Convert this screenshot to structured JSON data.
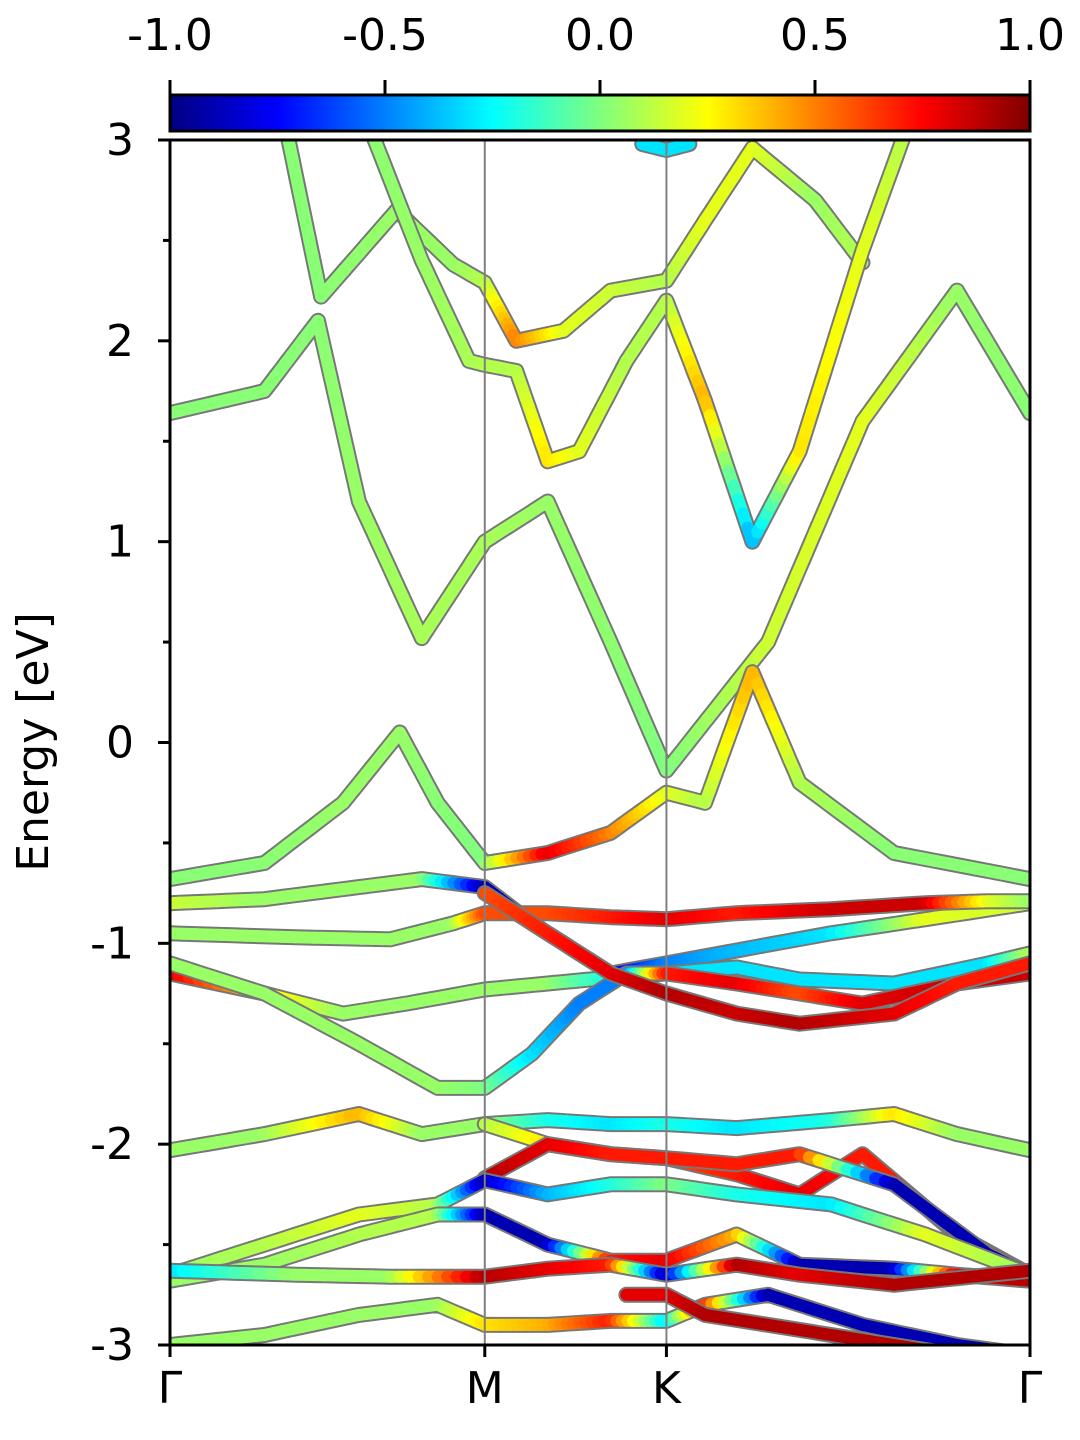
{
  "chart_data": {
    "type": "line",
    "ylabel": "Energy [eV]",
    "ylim": [
      -3,
      3
    ],
    "y_ticks": [
      "-3",
      "-2",
      "-1",
      "0",
      "1",
      "2",
      "3"
    ],
    "x_ticks": [
      "Γ",
      "M",
      "K",
      "Γ"
    ],
    "kpath_positions": [
      0,
      1,
      1.577,
      2.732
    ],
    "colorbar": {
      "range": [
        -1.0,
        1.0
      ],
      "ticks": [
        "-1.0",
        "-0.5",
        "0.0",
        "0.5",
        "1.0"
      ],
      "colormap": "jet"
    },
    "colormap_stops": [
      "#00007f",
      "#0000ff",
      "#007fff",
      "#00ffff",
      "#7fff7f",
      "#ffff00",
      "#ff7f00",
      "#ff0000",
      "#7f0000"
    ],
    "band_outline_color": "#777777",
    "series": [
      {
        "x": [
          0,
          0.3,
          0.47,
          0.6,
          0.8,
          1.0,
          1.2,
          1.4,
          1.577,
          1.9,
          2.2,
          2.5,
          2.732
        ],
        "values": [
          1.64,
          1.75,
          2.1,
          1.2,
          0.52,
          1.0,
          1.2,
          0.5,
          -0.14,
          0.5,
          1.6,
          2.25,
          1.64
        ],
        "colors": [
          0.02,
          0.02,
          0.02,
          0.05,
          0.08,
          0.08,
          0.05,
          0.03,
          0.0,
          0.15,
          0.2,
          0.05,
          0.02
        ]
      },
      {
        "x": [
          0.35,
          0.48,
          0.72,
          0.9,
          1.0,
          1.1,
          1.25,
          1.4,
          1.577,
          1.7,
          1.85,
          2.05,
          2.2
        ],
        "values": [
          3.2,
          2.22,
          2.65,
          2.38,
          2.29,
          2.0,
          2.05,
          2.25,
          2.3,
          2.6,
          2.96,
          2.7,
          2.39
        ],
        "colors": [
          0.02,
          0.02,
          0.05,
          0.05,
          0.1,
          0.5,
          0.2,
          0.15,
          0.1,
          0.2,
          0.2,
          0.05,
          0.1
        ]
      },
      {
        "x": [
          0.6,
          0.8,
          0.95,
          1.0,
          1.1,
          1.2,
          1.3,
          1.45,
          1.577,
          1.7,
          1.85,
          2.0,
          2.2,
          2.35
        ],
        "values": [
          3.2,
          2.4,
          1.9,
          1.88,
          1.85,
          1.4,
          1.45,
          1.9,
          2.2,
          1.7,
          1.0,
          1.45,
          2.45,
          3.1
        ],
        "colors": [
          0.02,
          0.05,
          0.08,
          0.1,
          0.1,
          0.3,
          0.2,
          0.1,
          0.1,
          0.4,
          -0.4,
          0.3,
          0.2,
          0.1
        ]
      },
      {
        "x": [
          0.0,
          0.3,
          0.55,
          0.73,
          0.85,
          1.0,
          1.2,
          1.4,
          1.577,
          1.7,
          1.85,
          2.0,
          2.3,
          2.732
        ],
        "values": [
          -0.68,
          -0.6,
          -0.3,
          0.05,
          -0.3,
          -0.6,
          -0.55,
          -0.45,
          -0.25,
          -0.3,
          0.35,
          -0.2,
          -0.55,
          -0.68
        ],
        "colors": [
          0.02,
          0.02,
          0.05,
          0.05,
          0.02,
          0.0,
          0.8,
          0.5,
          0.2,
          0.1,
          0.4,
          0.1,
          0.02,
          0.02
        ]
      },
      {
        "x": [
          0.0,
          0.3,
          0.6,
          0.8,
          1.0,
          1.15,
          1.4,
          1.577,
          1.75,
          2.1,
          2.4,
          2.732
        ],
        "values": [
          -0.8,
          -0.78,
          -0.72,
          -0.68,
          -0.72,
          -0.9,
          -1.15,
          -1.1,
          -1.05,
          -0.95,
          -0.88,
          -0.8
        ],
        "colors": [
          0.15,
          0.05,
          0.05,
          0.05,
          -0.9,
          -0.9,
          -0.8,
          -0.5,
          -0.4,
          -0.3,
          0.2,
          0.15
        ]
      },
      {
        "x": [
          0.0,
          0.4,
          0.7,
          0.9,
          1.0,
          1.2,
          1.4,
          1.577,
          1.8,
          2.1,
          2.4,
          2.6,
          2.732
        ],
        "values": [
          -0.95,
          -0.97,
          -0.98,
          -0.9,
          -0.85,
          -0.85,
          -0.87,
          -0.88,
          -0.85,
          -0.83,
          -0.8,
          -0.79,
          -0.79
        ],
        "colors": [
          0.05,
          0.05,
          0.05,
          0.05,
          0.6,
          0.6,
          0.7,
          0.8,
          0.7,
          0.85,
          0.85,
          0.2,
          0.05
        ]
      },
      {
        "x": [
          0.0,
          0.3,
          0.55,
          0.75,
          1.0,
          1.2,
          1.4,
          1.577,
          1.8,
          2.0,
          2.3,
          2.6,
          2.732
        ],
        "values": [
          -1.15,
          -1.25,
          -1.35,
          -1.3,
          -1.23,
          -1.2,
          -1.17,
          -1.15,
          -1.12,
          -1.18,
          -1.2,
          -1.1,
          -1.05
        ],
        "colors": [
          0.8,
          0.3,
          0.05,
          0.05,
          0.05,
          0.05,
          -0.2,
          -0.3,
          -0.3,
          -0.3,
          -0.3,
          -0.3,
          0.1
        ]
      },
      {
        "x": [
          0.0,
          0.3,
          0.6,
          0.85,
          1.0,
          1.15,
          1.3,
          1.45,
          1.577,
          1.8,
          2.0,
          2.2,
          2.5,
          2.732
        ],
        "values": [
          -1.1,
          -1.25,
          -1.5,
          -1.72,
          -1.72,
          -1.55,
          -1.3,
          -1.15,
          -1.15,
          -1.2,
          -1.25,
          -1.3,
          -1.2,
          -1.15
        ],
        "colors": [
          0.05,
          0.05,
          0.05,
          0.05,
          0.0,
          -0.3,
          -0.5,
          -0.5,
          0.7,
          0.8,
          0.6,
          0.8,
          0.85,
          0.85
        ]
      },
      {
        "x": [
          1.0,
          1.2,
          1.4,
          1.577,
          1.8,
          2.0,
          2.3,
          2.5,
          2.732
        ],
        "values": [
          -0.75,
          -0.95,
          -1.15,
          -1.25,
          -1.35,
          -1.4,
          -1.35,
          -1.2,
          -1.1
        ],
        "colors": [
          0.6,
          0.7,
          0.8,
          0.9,
          0.85,
          0.9,
          0.8,
          0.7,
          0.7
        ]
      },
      {
        "x": [
          0.0,
          0.3,
          0.6,
          0.8,
          1.0,
          1.2,
          1.4,
          1.577,
          1.8,
          2.1,
          2.3,
          2.5,
          2.732
        ],
        "values": [
          -2.03,
          -1.95,
          -1.85,
          -1.95,
          -1.9,
          -1.88,
          -1.9,
          -1.9,
          -1.92,
          -1.88,
          -1.85,
          -1.95,
          -2.03
        ],
        "colors": [
          0.05,
          0.05,
          0.4,
          0.05,
          0.05,
          -0.2,
          -0.3,
          -0.2,
          -0.3,
          -0.2,
          0.3,
          0.05,
          0.05
        ]
      },
      {
        "x": [
          1.0,
          1.2,
          1.4,
          1.577,
          1.8,
          2.0,
          2.2,
          2.5,
          2.732
        ],
        "values": [
          -1.9,
          -2.0,
          -2.05,
          -2.07,
          -2.15,
          -2.25,
          -2.05,
          -2.45,
          -2.65
        ],
        "colors": [
          0.1,
          0.3,
          0.6,
          0.6,
          0.7,
          0.8,
          0.7,
          0.7,
          0.6
        ]
      },
      {
        "x": [
          1.0,
          1.2,
          1.4,
          1.577,
          1.8,
          2.0,
          2.3,
          2.6,
          2.732
        ],
        "values": [
          -2.17,
          -2.0,
          -2.05,
          -2.07,
          -2.1,
          -2.05,
          -2.2,
          -2.55,
          -2.65
        ],
        "colors": [
          0.9,
          0.8,
          0.7,
          0.7,
          0.7,
          0.7,
          -0.9,
          -0.9,
          -0.9
        ]
      },
      {
        "x": [
          0.0,
          0.3,
          0.6,
          0.85,
          1.0,
          1.2,
          1.4,
          1.577,
          1.8,
          2.1,
          2.4,
          2.732
        ],
        "values": [
          -2.65,
          -2.5,
          -2.35,
          -2.3,
          -2.18,
          -2.25,
          -2.2,
          -2.2,
          -2.25,
          -2.3,
          -2.45,
          -2.65
        ],
        "colors": [
          0.05,
          0.1,
          0.2,
          0.1,
          -0.9,
          -0.4,
          -0.2,
          0.0,
          -0.2,
          -0.3,
          0.2,
          0.05
        ]
      },
      {
        "x": [
          0.0,
          0.3,
          0.6,
          0.85,
          1.0,
          1.2,
          1.4,
          1.577,
          1.8,
          2.0,
          2.3,
          2.5,
          2.732
        ],
        "values": [
          -2.68,
          -2.6,
          -2.45,
          -2.35,
          -2.35,
          -2.5,
          -2.58,
          -2.58,
          -2.45,
          -2.6,
          -2.62,
          -2.65,
          -2.68
        ],
        "colors": [
          0.05,
          0.05,
          0.1,
          0.1,
          -0.9,
          -0.9,
          0.7,
          0.8,
          0.4,
          -0.9,
          -0.9,
          0.8,
          0.9
        ]
      },
      {
        "x": [
          0.0,
          0.4,
          0.7,
          1.0,
          1.2,
          1.4,
          1.577,
          1.8,
          2.0,
          2.3,
          2.732
        ],
        "values": [
          -2.63,
          -2.65,
          -2.66,
          -2.66,
          -2.62,
          -2.6,
          -2.65,
          -2.6,
          -2.65,
          -2.7,
          -2.63
        ],
        "colors": [
          -0.3,
          0.05,
          0.05,
          0.9,
          0.8,
          0.7,
          -0.9,
          0.9,
          0.8,
          0.9,
          0.9
        ]
      },
      {
        "x": [
          0.0,
          0.3,
          0.6,
          0.85,
          1.0,
          1.2,
          1.4,
          1.577,
          1.7,
          1.9,
          2.2,
          2.5,
          2.732
        ],
        "values": [
          -3.0,
          -2.95,
          -2.85,
          -2.8,
          -2.9,
          -2.9,
          -2.88,
          -2.88,
          -2.8,
          -2.75,
          -2.9,
          -3.0,
          -3.05
        ],
        "colors": [
          0.05,
          0.05,
          0.05,
          0.05,
          0.3,
          0.4,
          0.7,
          -0.3,
          0.7,
          -0.9,
          -0.9,
          -0.9,
          -0.9
        ]
      },
      {
        "x": [
          1.45,
          1.577,
          1.7,
          1.9,
          2.1,
          2.3,
          2.5
        ],
        "values": [
          -2.75,
          -2.75,
          -2.85,
          -2.9,
          -2.95,
          -3.0,
          -3.05
        ],
        "colors": [
          0.8,
          0.8,
          0.9,
          0.9,
          0.9,
          0.9,
          0.9
        ]
      },
      {
        "x": [
          1.5,
          1.577,
          1.65
        ],
        "values": [
          2.98,
          2.95,
          2.98
        ],
        "colors": [
          -0.3,
          -0.3,
          -0.3
        ]
      }
    ]
  }
}
